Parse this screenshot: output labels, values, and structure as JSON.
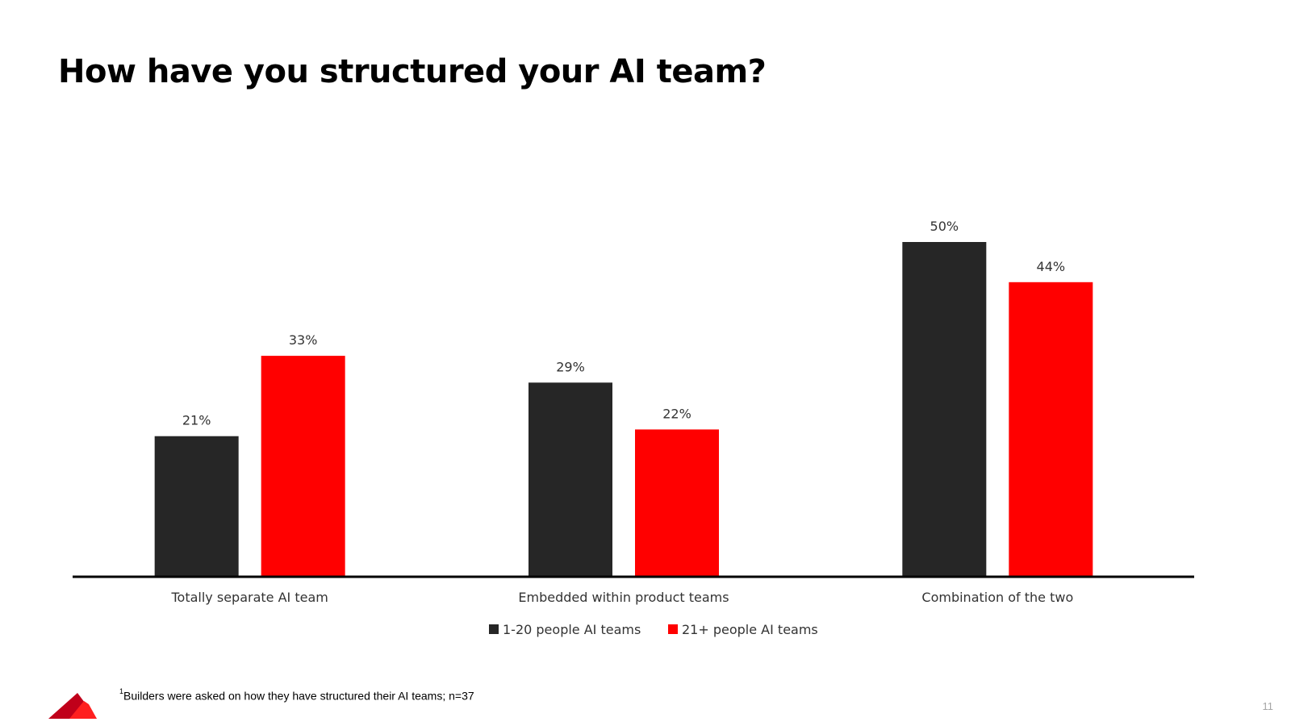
{
  "slide": {
    "title": "How have you structured your AI team?",
    "footnote_marker": "1",
    "footnote_text": "Builders were asked on how they have structured their AI teams; n=37",
    "page_number": "11"
  },
  "logo": {
    "icon": "mountain-logo-icon",
    "colors": [
      "#c0001a",
      "#ff1f1f"
    ]
  },
  "chart_data": {
    "type": "bar",
    "categories": [
      "Totally separate AI team",
      "Embedded within product teams",
      "Combination of the two"
    ],
    "series": [
      {
        "name": "1-20 people AI teams",
        "values": [
          21,
          29,
          50
        ],
        "labels": [
          "21%",
          "29%",
          "50%"
        ],
        "color": "#262626"
      },
      {
        "name": "21+ people AI teams",
        "values": [
          33,
          22,
          44
        ],
        "labels": [
          "33%",
          "22%",
          "44%"
        ],
        "color": "#ff0000"
      }
    ],
    "value_unit": "%",
    "title": "",
    "xlabel": "",
    "ylabel": "",
    "ylim": [
      0,
      50
    ],
    "grid": false,
    "legend_position": "bottom"
  }
}
